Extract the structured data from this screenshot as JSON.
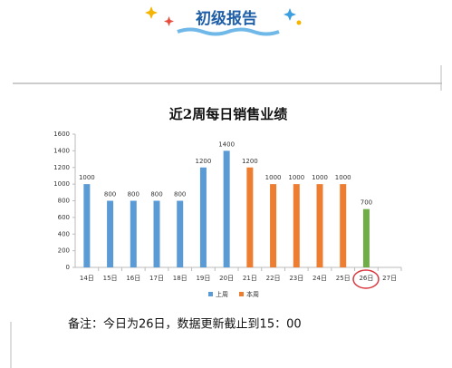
{
  "header": {
    "title": "初级报告"
  },
  "chart_data": {
    "type": "bar",
    "title": "近2周每日销售业绩",
    "categories": [
      "14日",
      "15日",
      "16日",
      "17日",
      "18日",
      "19日",
      "20日",
      "21日",
      "22日",
      "23日",
      "24日",
      "25日",
      "26日",
      "27日"
    ],
    "series": [
      {
        "name": "上周",
        "color": "#5b9bd5",
        "values": [
          1000,
          800,
          800,
          800,
          800,
          1200,
          1400,
          null,
          null,
          null,
          null,
          null,
          null,
          null
        ]
      },
      {
        "name": "本周",
        "color": "#ed7d31",
        "values": [
          null,
          null,
          null,
          null,
          null,
          null,
          null,
          1200,
          1000,
          1000,
          1000,
          1000,
          700,
          null
        ],
        "point_colors": [
          null,
          null,
          null,
          null,
          null,
          null,
          null,
          null,
          null,
          null,
          null,
          null,
          "#70ad47",
          null
        ]
      }
    ],
    "ylim": [
      0,
      1600
    ],
    "yticks": [
      0,
      200,
      400,
      600,
      800,
      1000,
      1200,
      1400,
      1600
    ],
    "grid": false,
    "legend": "bottom"
  },
  "note": "备注：今日为26日，数据更新截止到15：00"
}
